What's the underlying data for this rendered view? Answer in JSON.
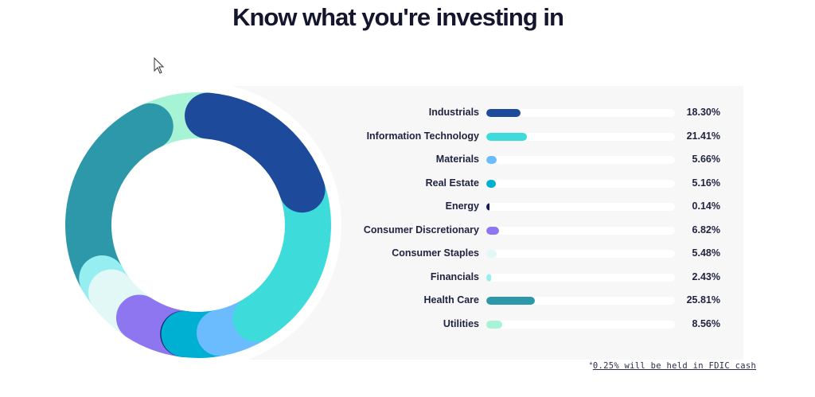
{
  "page": {
    "title": "Know what you're investing in"
  },
  "footnote": {
    "marker": "*",
    "text": "0.25% will be held in FDIC cash"
  },
  "chart_data": {
    "type": "pie",
    "title": "",
    "unit": "%",
    "series": [
      {
        "name": "Industrials",
        "value": 18.3,
        "label": "18.30%",
        "color": "#1e4a9c"
      },
      {
        "name": "Information Technology",
        "value": 21.41,
        "label": "21.41%",
        "color": "#3ddbd9"
      },
      {
        "name": "Materials",
        "value": 5.66,
        "label": "5.66%",
        "color": "#6bbcff"
      },
      {
        "name": "Real Estate",
        "value": 5.16,
        "label": "5.16%",
        "color": "#00b0d3"
      },
      {
        "name": "Energy",
        "value": 0.14,
        "label": "0.14%",
        "color": "#121a5e"
      },
      {
        "name": "Consumer Discretionary",
        "value": 6.82,
        "label": "6.82%",
        "color": "#8d76f0"
      },
      {
        "name": "Consumer Staples",
        "value": 5.48,
        "label": "5.48%",
        "color": "#e1f8f7"
      },
      {
        "name": "Financials",
        "value": 2.43,
        "label": "2.43%",
        "color": "#96eef0"
      },
      {
        "name": "Health Care",
        "value": 25.81,
        "label": "25.81%",
        "color": "#2c98a9"
      },
      {
        "name": "Utilities",
        "value": 8.56,
        "label": "8.56%",
        "color": "#a6f3d6"
      }
    ],
    "bar_max": 100
  }
}
